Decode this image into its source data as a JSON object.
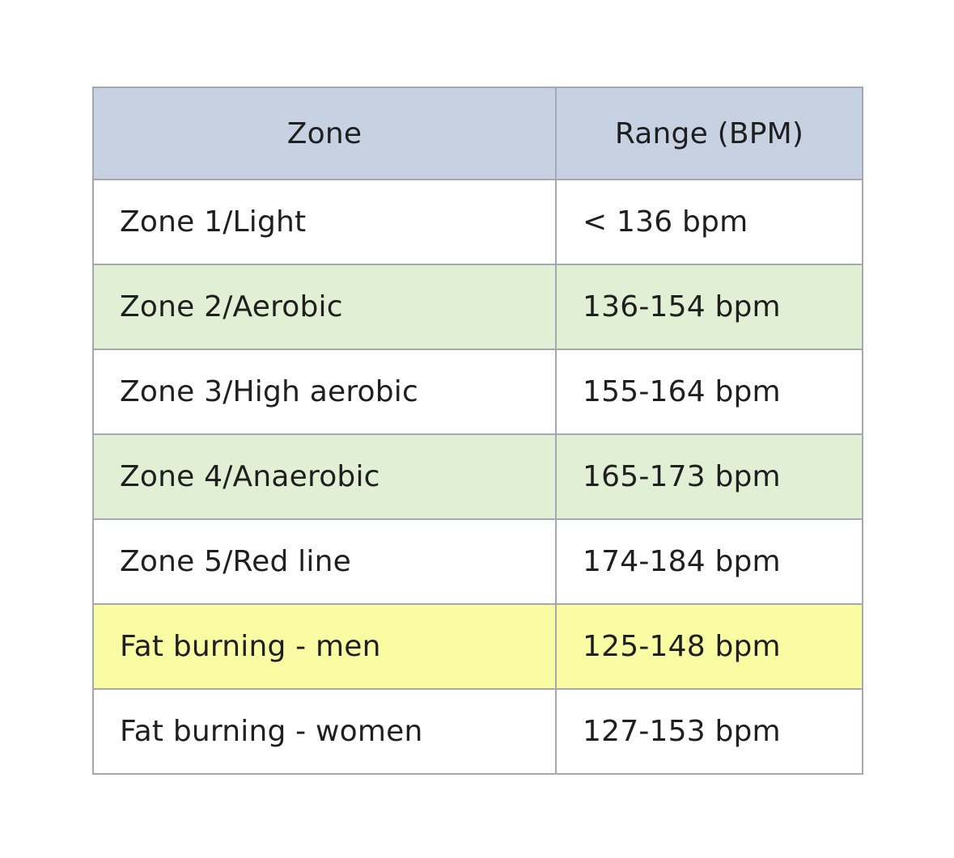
{
  "table": {
    "headers": [
      "Zone",
      "Range (BPM)"
    ],
    "row_colors": {
      "white": "#ffffff",
      "green": "#e1f0d4",
      "yellow": "#f9fca3",
      "header": "#c6d2e2",
      "border": "#a7a7b1"
    },
    "rows": [
      {
        "zone": "Zone 1/Light",
        "range": "< 136 bpm",
        "color": "white"
      },
      {
        "zone": "Zone 2/Aerobic",
        "range": "136-154 bpm",
        "color": "green"
      },
      {
        "zone": "Zone 3/High aerobic",
        "range": "155-164 bpm",
        "color": "white"
      },
      {
        "zone": "Zone 4/Anaerobic",
        "range": "165-173 bpm",
        "color": "green"
      },
      {
        "zone": "Zone 5/Red line",
        "range": "174-184 bpm",
        "color": "white"
      },
      {
        "zone": "Fat burning - men",
        "range": "125-148 bpm",
        "color": "yellow"
      },
      {
        "zone": "Fat burning - women",
        "range": "127-153 bpm",
        "color": "white"
      }
    ]
  }
}
